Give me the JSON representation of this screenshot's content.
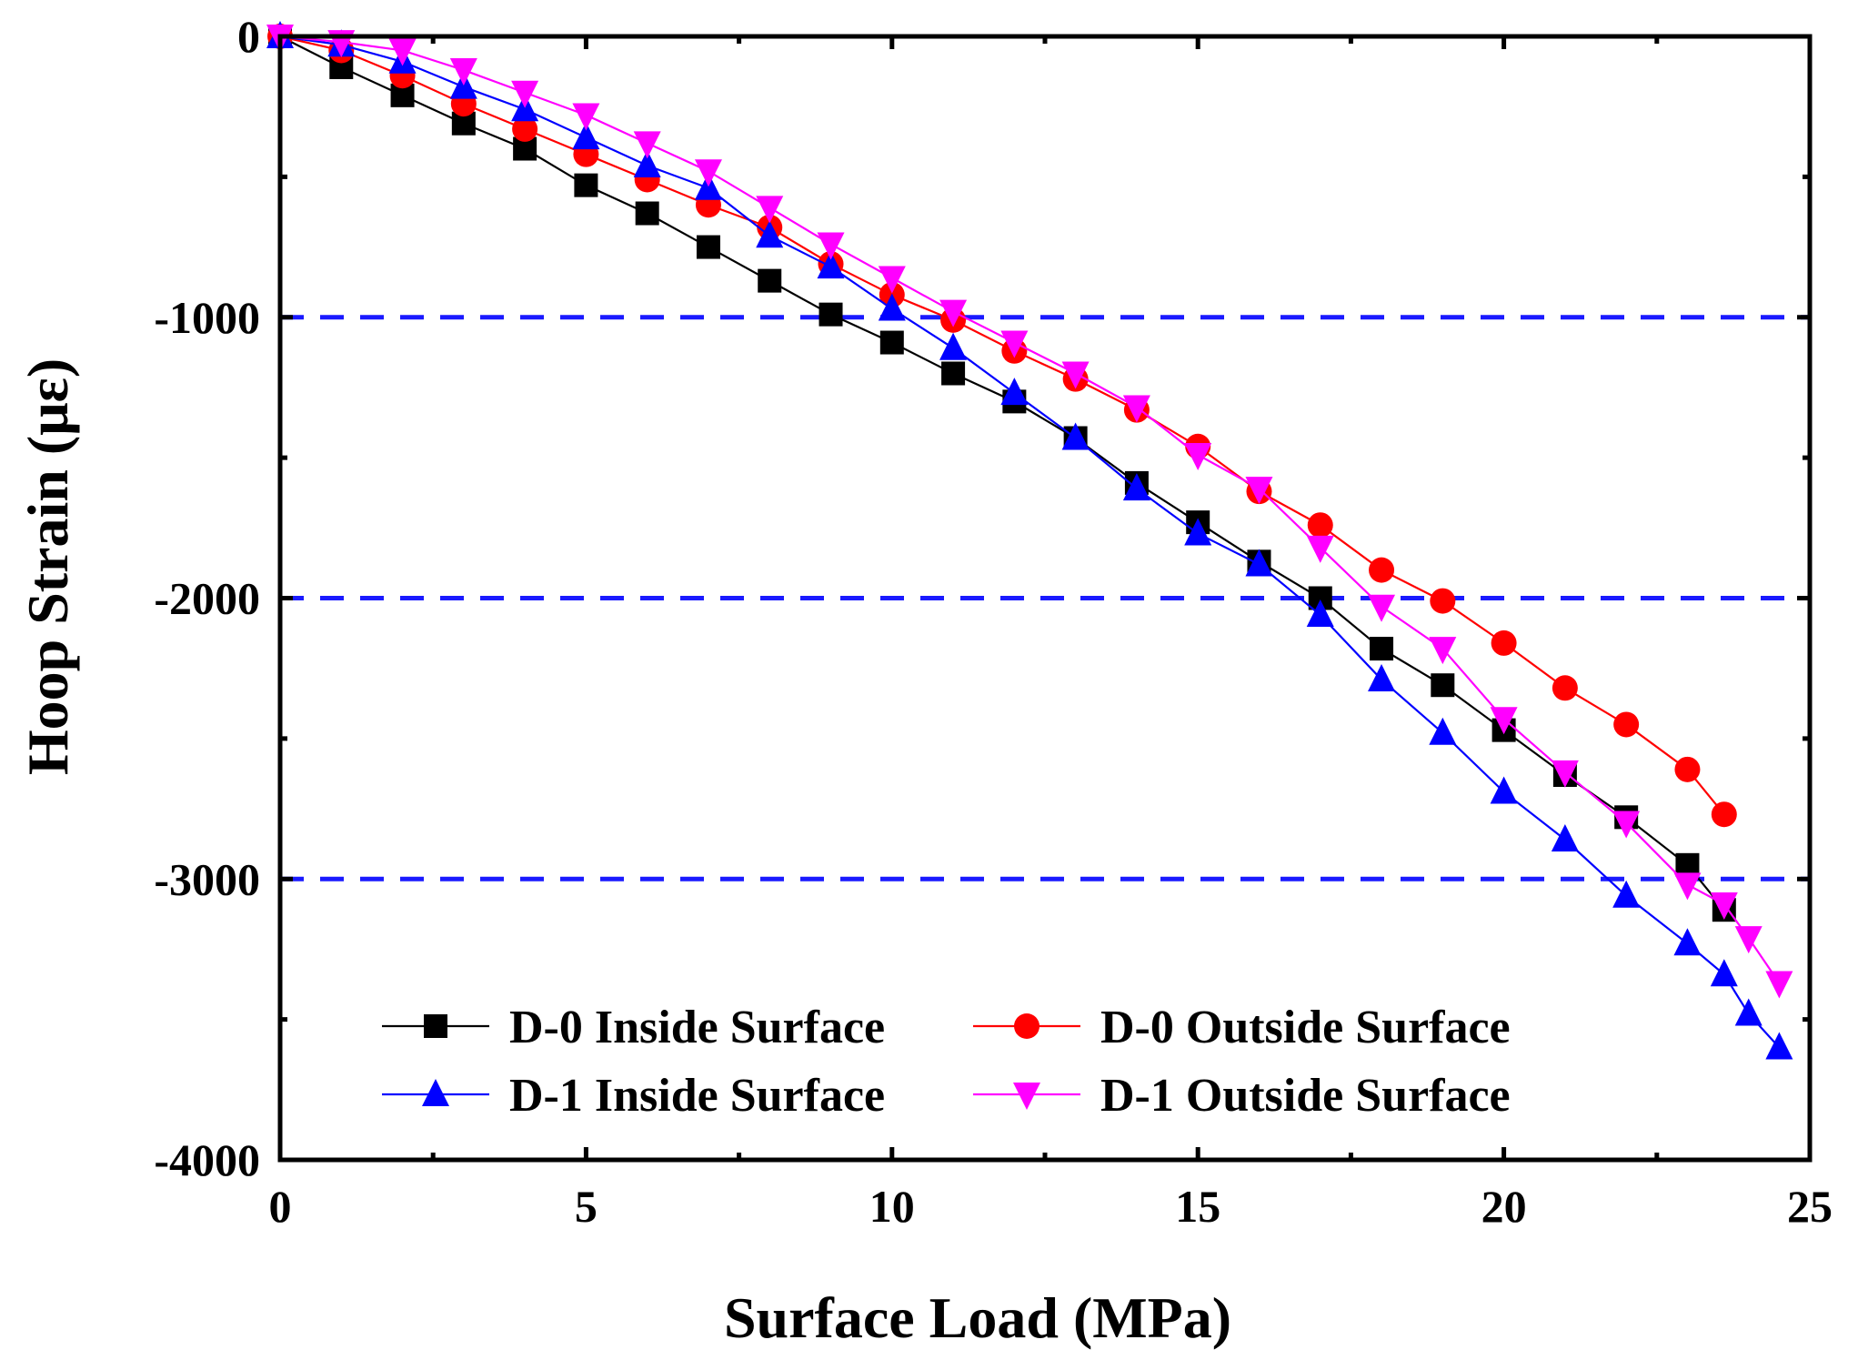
{
  "chart_data": {
    "type": "line",
    "title": "",
    "xlabel": "Surface Load (MPa)",
    "ylabel": "Hoop Strain (με)",
    "xlim": [
      0,
      25
    ],
    "ylim": [
      -4000,
      0
    ],
    "x_ticks": [
      "0",
      "5",
      "10",
      "15",
      "20",
      "25"
    ],
    "y_ticks": [
      "0",
      "-1000",
      "-2000",
      "-3000",
      "-4000"
    ],
    "reference_lines": [
      -1000,
      -2000,
      -3000
    ],
    "legend_position": "bottom-center",
    "series": [
      {
        "name": "D-0 Inside Surface",
        "color": "#000000",
        "marker": "square",
        "x": [
          0,
          1,
          2,
          3,
          4,
          5,
          6,
          7,
          8,
          9,
          10,
          11,
          12,
          13,
          14,
          15,
          16,
          17,
          18,
          19,
          20,
          21,
          22,
          23,
          23.6
        ],
        "y": [
          0,
          -110,
          -210,
          -310,
          -400,
          -530,
          -630,
          -750,
          -870,
          -990,
          -1090,
          -1200,
          -1300,
          -1430,
          -1590,
          -1730,
          -1870,
          -2000,
          -2180,
          -2310,
          -2470,
          -2630,
          -2780,
          -2950,
          -3110
        ]
      },
      {
        "name": "D-0 Outside Surface",
        "color": "#ff0000",
        "marker": "circle",
        "x": [
          0,
          1,
          2,
          3,
          4,
          5,
          6,
          7,
          8,
          9,
          10,
          11,
          12,
          13,
          14,
          15,
          16,
          17,
          18,
          19,
          20,
          21,
          22,
          23,
          23.6
        ],
        "y": [
          0,
          -50,
          -140,
          -240,
          -330,
          -420,
          -510,
          -600,
          -680,
          -810,
          -920,
          -1010,
          -1120,
          -1220,
          -1330,
          -1460,
          -1620,
          -1740,
          -1900,
          -2010,
          -2160,
          -2320,
          -2450,
          -2610,
          -2770
        ]
      },
      {
        "name": "D-1 Inside Surface",
        "color": "#0000ff",
        "marker": "triangle-up",
        "x": [
          0,
          1,
          2,
          3,
          4,
          5,
          6,
          7,
          8,
          9,
          10,
          11,
          12,
          13,
          14,
          15,
          16,
          17,
          18,
          19,
          20,
          21,
          22,
          23,
          23.6,
          24,
          24.5
        ],
        "y": [
          0,
          -30,
          -90,
          -180,
          -260,
          -360,
          -460,
          -540,
          -710,
          -820,
          -970,
          -1110,
          -1270,
          -1430,
          -1610,
          -1770,
          -1880,
          -2060,
          -2290,
          -2480,
          -2690,
          -2860,
          -3060,
          -3230,
          -3340,
          -3480,
          -3600
        ]
      },
      {
        "name": "D-1 Outside Surface",
        "color": "#ff00ff",
        "marker": "triangle-down",
        "x": [
          0,
          1,
          2,
          3,
          4,
          5,
          6,
          7,
          8,
          9,
          10,
          11,
          12,
          13,
          14,
          15,
          16,
          17,
          18,
          19,
          20,
          21,
          22,
          23,
          23.6,
          24,
          24.5
        ],
        "y": [
          0,
          -20,
          -50,
          -120,
          -200,
          -280,
          -380,
          -480,
          -610,
          -740,
          -860,
          -980,
          -1090,
          -1200,
          -1320,
          -1490,
          -1610,
          -1820,
          -2030,
          -2180,
          -2430,
          -2620,
          -2800,
          -3020,
          -3090,
          -3210,
          -3370
        ]
      }
    ]
  }
}
